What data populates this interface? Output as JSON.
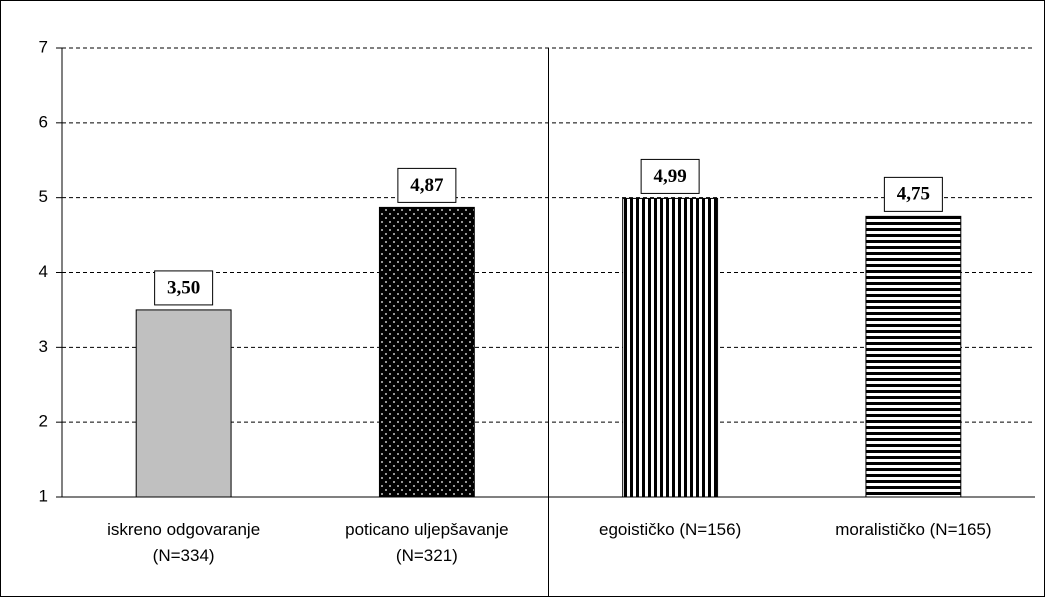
{
  "chart_data": {
    "type": "bar",
    "categories": [
      "iskreno odgovaranje\n(N=334)",
      "poticano uljepšavanje\n(N=321)",
      "egoističko (N=156)",
      "moralističko (N=165)"
    ],
    "values": [
      3.5,
      4.87,
      4.99,
      4.75
    ],
    "value_labels": [
      "3,50",
      "4,87",
      "4,99",
      "4,75"
    ],
    "colors": [
      "#c0c0c0",
      "#000000",
      "#ffffff",
      "#ffffff"
    ],
    "patterns": [
      "solid",
      "dots",
      "vertical",
      "horizontal"
    ],
    "ylim": [
      1,
      7
    ],
    "yticks": [
      1,
      2,
      3,
      4,
      5,
      6,
      7
    ],
    "grid": true
  }
}
